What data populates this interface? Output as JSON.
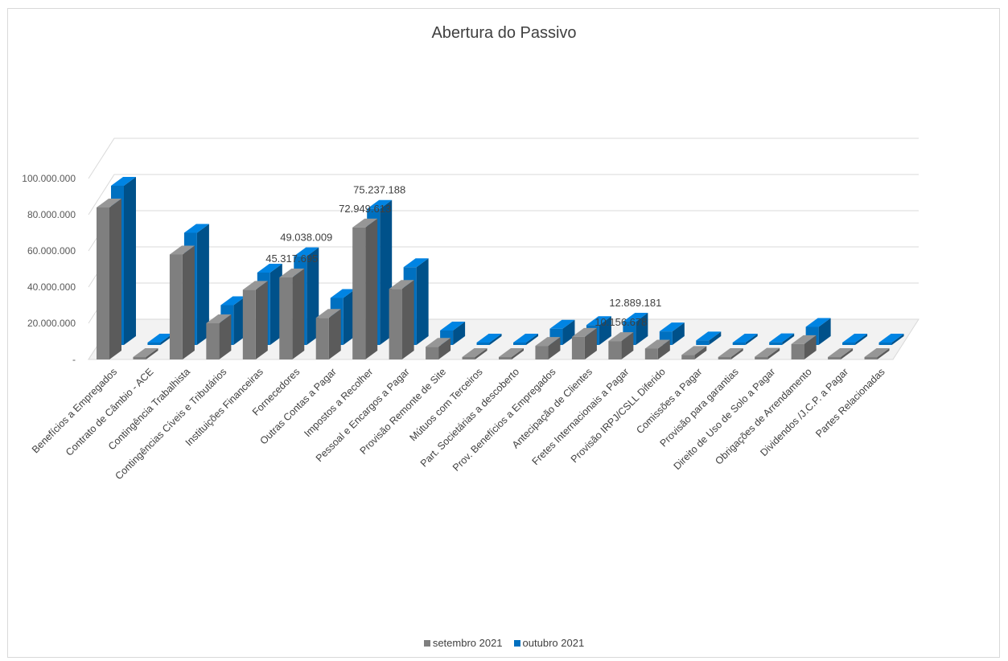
{
  "chart_data": {
    "type": "bar",
    "title": "Abertura do Passivo",
    "xlabel": "",
    "ylabel": "",
    "ylim": [
      0,
      100000000
    ],
    "yticks": [
      0,
      20000000,
      40000000,
      60000000,
      80000000,
      100000000
    ],
    "ytick_labels": [
      "-",
      "20.000.000",
      "40.000.000",
      "60.000.000",
      "80.000.000",
      "100.000.000"
    ],
    "grid": true,
    "legend_position": "bottom",
    "categories": [
      "Benefícios a Empregados",
      "Contrato de Câmbio - ACE",
      "Contingência Trabalhista",
      "Contingências Cíveis e Tributários",
      "Instituições Financeiras",
      "Fornecedores",
      "Outras Contas a Pagar",
      "Impostos a Recolher",
      "Pessoal e Encargos a Pagar",
      "Provisão Remonte de Site",
      "Mútuos com Terceiros",
      "Part. Societárias a descoberto",
      "Prov. Benefícios a Empregados",
      "Antecipação de Clientes",
      "Fretes Internacionais a Pagar",
      "Provisão IRPJ/CSLL Diferido",
      "Comissões a Pagar",
      "Provisão para garantias",
      "Direito de Uso de Solo a Pagar",
      "Obrigações de Arrendamento",
      "Dividendos /J.C.P. a Pagar",
      "Partes Relacionadas"
    ],
    "series": [
      {
        "name": "setembro 2021",
        "color": "#7f7f7f",
        "values": [
          84000000,
          500000,
          58000000,
          20000000,
          38500000,
          45317695,
          23000000,
          72949613,
          39000000,
          7000000,
          300000,
          400000,
          7500000,
          12500000,
          10156678,
          6000000,
          2500000,
          300000,
          1500000,
          8500000,
          200000,
          300000
        ]
      },
      {
        "name": "outubro 2021",
        "color": "#0070c0",
        "values": [
          88000000,
          1000000,
          62000000,
          22000000,
          40000000,
          49038009,
          26000000,
          75237188,
          43000000,
          8000000,
          1000000,
          1000000,
          9000000,
          11000000,
          12889181,
          7500000,
          2500000,
          1000000,
          1500000,
          10000000,
          1000000,
          1000000
        ]
      }
    ],
    "data_labels": [
      {
        "series": 0,
        "category": 5,
        "text": "45.317.695"
      },
      {
        "series": 1,
        "category": 5,
        "text": "49.038.009"
      },
      {
        "series": 0,
        "category": 7,
        "text": "72.949.613"
      },
      {
        "series": 1,
        "category": 7,
        "text": "75.237.188"
      },
      {
        "series": 0,
        "category": 14,
        "text": "10.156.678"
      },
      {
        "series": 1,
        "category": 14,
        "text": "12.889.181"
      }
    ]
  }
}
